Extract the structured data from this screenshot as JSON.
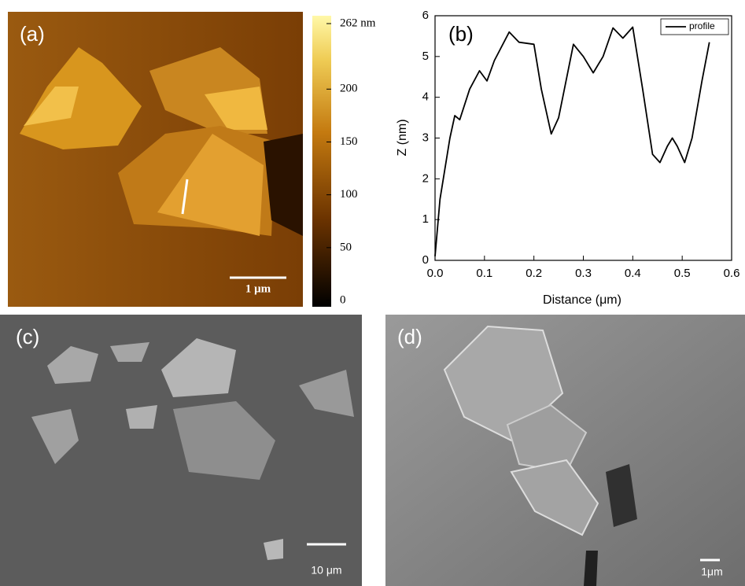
{
  "panels": {
    "a": {
      "label": "(a)",
      "scale_bar": "1 μm",
      "colorbar": {
        "lim": [
          0,
          262
        ],
        "ticks": [
          0,
          50,
          100,
          150,
          200,
          {
            "value": 262,
            "label": "262 nm"
          }
        ]
      }
    },
    "c": {
      "label": "(c)",
      "scale_bar": "10 μm"
    },
    "d": {
      "label": "(d)",
      "scale_bar": "1μm"
    }
  },
  "chart_data": {
    "type": "line",
    "label": "(b)",
    "xlabel": "Distance (μm)",
    "ylabel": "Z (nm)",
    "x": [
      0,
      0.01,
      0.03,
      0.04,
      0.05,
      0.07,
      0.09,
      0.105,
      0.12,
      0.15,
      0.17,
      0.2,
      0.215,
      0.235,
      0.25,
      0.28,
      0.3,
      0.32,
      0.34,
      0.36,
      0.38,
      0.4,
      0.42,
      0.44,
      0.455,
      0.47,
      0.48,
      0.49,
      0.505,
      0.52,
      0.54,
      0.555
    ],
    "series": [
      {
        "name": "profile",
        "color": "#000000",
        "values": [
          0.1,
          1.5,
          3.0,
          3.55,
          3.45,
          4.2,
          4.65,
          4.4,
          4.9,
          5.6,
          5.35,
          5.3,
          4.2,
          3.1,
          3.5,
          5.3,
          5.0,
          4.6,
          5.0,
          5.7,
          5.45,
          5.72,
          4.2,
          2.6,
          2.4,
          2.8,
          3.0,
          2.8,
          2.4,
          3.0,
          4.4,
          5.35
        ]
      }
    ],
    "xlim": [
      0,
      0.6
    ],
    "ylim": [
      0,
      6
    ],
    "xticks": [
      {
        "value": 0,
        "label": "0.0"
      },
      0.1,
      0.2,
      0.3,
      0.4,
      0.5,
      0.6
    ],
    "yticks": [
      0,
      1,
      2,
      3,
      4,
      5,
      6
    ],
    "legend": "upper right"
  }
}
